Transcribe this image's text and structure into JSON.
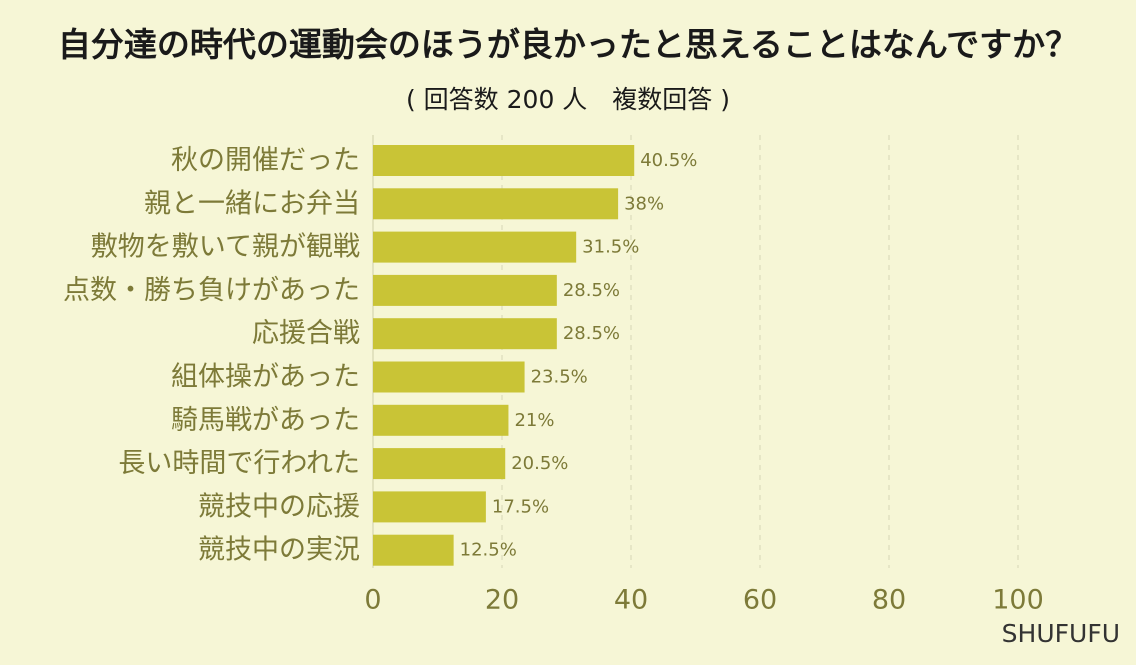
{
  "header": {
    "title": "自分達の時代の運動会のほうが良かったと思えることはなんですか？",
    "subtitle": "( 回答数 200 人　複数回答 )"
  },
  "footer": {
    "brand": "SHUFUFU"
  },
  "colors": {
    "background": "#f6f6d6",
    "bar": "#c9c436",
    "label": "#7d7a38",
    "grid": "#dcdcbc"
  },
  "chart_data": {
    "type": "bar",
    "orientation": "horizontal",
    "categories": [
      "秋の開催だった",
      "親と一緒にお弁当",
      "敷物を敷いて親が観戦",
      "点数・勝ち負けがあった",
      "応援合戦",
      "組体操があった",
      "騎馬戦があった",
      "長い時間で行われた",
      "競技中の応援",
      "競技中の実況"
    ],
    "values": [
      40.5,
      38,
      31.5,
      28.5,
      28.5,
      23.5,
      21,
      20.5,
      17.5,
      12.5
    ],
    "value_labels": [
      "40.5%",
      "38%",
      "31.5%",
      "28.5%",
      "28.5%",
      "23.5%",
      "21%",
      "20.5%",
      "17.5%",
      "12.5%"
    ],
    "x_ticks": [
      0,
      20,
      40,
      60,
      80,
      100
    ],
    "x_tick_labels": [
      "0",
      "20",
      "40",
      "60",
      "80",
      "100"
    ],
    "xlim": [
      0,
      100
    ],
    "grid": "vertical-dashed",
    "legend": "none"
  }
}
